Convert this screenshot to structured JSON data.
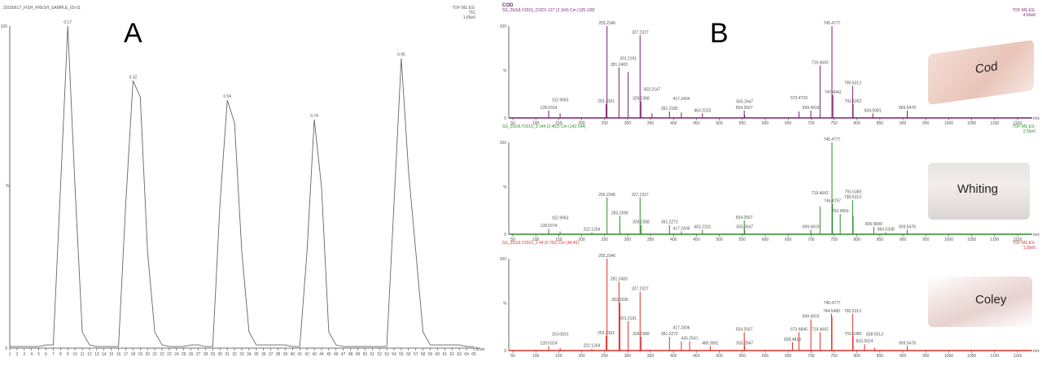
{
  "chart_data": [
    {
      "type": "line",
      "panel_label": "A",
      "title": "20150617_FISH_FRESH_SAMPLE_03-01",
      "header_right": [
        "TOF MS ES-",
        "TIC",
        "1.65e6"
      ],
      "xlabel": "Scan",
      "ylabel": "%",
      "xlim": [
        1,
        65
      ],
      "ylim": [
        0,
        100
      ],
      "y_ticks": [
        "0",
        "100"
      ],
      "x": [
        1,
        2,
        3,
        4,
        5,
        6,
        7,
        8,
        9,
        10,
        11,
        12,
        13,
        14,
        15,
        16,
        17,
        18,
        19,
        20,
        21,
        22,
        23,
        24,
        25,
        26,
        27,
        28,
        29,
        30,
        31,
        32,
        33,
        34,
        35,
        36,
        37,
        38,
        39,
        40,
        41,
        42,
        43,
        44,
        45,
        46,
        47,
        48,
        49,
        50,
        51,
        52,
        53,
        54,
        55,
        56,
        57,
        58,
        59,
        60,
        61,
        62,
        63,
        64,
        65
      ],
      "y": [
        0.5,
        0.5,
        0.5,
        0.5,
        0.5,
        1,
        1,
        50,
        100,
        50,
        5,
        1,
        0.5,
        0.5,
        0.5,
        0.5,
        45,
        83,
        78,
        30,
        5,
        1,
        0.5,
        0.5,
        0.5,
        1,
        1,
        0.5,
        0.5,
        45,
        77,
        70,
        30,
        5,
        1,
        1,
        1,
        1,
        1,
        0.5,
        0.5,
        30,
        71,
        50,
        5,
        1,
        0.5,
        0.5,
        0.5,
        0.5,
        0.5,
        0.5,
        0.5,
        45,
        90,
        55,
        30,
        5,
        1,
        1,
        1,
        1,
        1,
        0.5,
        0.5
      ],
      "peak_labels": [
        {
          "x": 9,
          "y": 100,
          "label": "0.17"
        },
        {
          "x": 18,
          "y": 83,
          "label": "0.32"
        },
        {
          "x": 31,
          "y": 77,
          "label": "0.54"
        },
        {
          "x": 43,
          "y": 71,
          "label": "0.74"
        },
        {
          "x": 55,
          "y": 90,
          "label": "0.95"
        }
      ]
    },
    {
      "type": "bar",
      "panel_label": "B",
      "group_title": "COD",
      "title": "SS_29JULY2015_COD1 127 (2.164) Cm (125:128)",
      "header_right": [
        "TOF MS ES-",
        "4.60e6"
      ],
      "fish_label": "Cod",
      "color": "#7a1f6e",
      "xlabel": "m/z",
      "ylabel": "%",
      "xlim": [
        50,
        1200
      ],
      "ylim": [
        0,
        100
      ],
      "x_ticks": [
        50,
        100,
        150,
        200,
        250,
        300,
        350,
        400,
        450,
        500,
        550,
        600,
        650,
        700,
        750,
        800,
        850,
        900,
        950,
        1000,
        1050,
        1100,
        1150
      ],
      "peaks": [
        [
          128.0324,
          8
        ],
        [
          152.9963,
          5
        ],
        [
          253.2161,
          15
        ],
        [
          255.2346,
          100
        ],
        [
          281.2483,
          55
        ],
        [
          301.2191,
          50
        ],
        [
          327.2327,
          90
        ],
        [
          329.2368,
          18
        ],
        [
          353.2147,
          5
        ],
        [
          391.2185,
          7
        ],
        [
          417.2404,
          6
        ],
        [
          463.2233,
          5
        ],
        [
          554.2567,
          8
        ],
        [
          555.2647,
          3
        ],
        [
          673.4733,
          7
        ],
        [
          699.4919,
          8
        ],
        [
          719.4642,
          57
        ],
        [
          745.4777,
          100
        ],
        [
          747.4942,
          25
        ],
        [
          790.5313,
          35
        ],
        [
          791.5262,
          15
        ],
        [
          834.5081,
          5
        ],
        [
          909.5478,
          8
        ]
      ]
    },
    {
      "type": "bar",
      "title": "SS_29JULY2015_3 144 (2.452) Cm (142:144)",
      "header_right": [
        "TOF MS ES-",
        "2.55e6"
      ],
      "fish_label": "Whiting",
      "color": "#2e8b2e",
      "xlabel": "m/z",
      "ylabel": "%",
      "xlim": [
        50,
        1200
      ],
      "ylim": [
        0,
        100
      ],
      "x_ticks": [
        50,
        100,
        150,
        200,
        250,
        300,
        350,
        400,
        450,
        500,
        550,
        600,
        650,
        700,
        750,
        800,
        850,
        900,
        950,
        1000,
        1050,
        1100,
        1150
      ],
      "peaks": [
        [
          128.0374,
          6
        ],
        [
          152.9963,
          3
        ],
        [
          222.1264,
          2
        ],
        [
          255.2346,
          40
        ],
        [
          283.2596,
          20
        ],
        [
          327.2327,
          40
        ],
        [
          329.2368,
          10
        ],
        [
          391.2272,
          10
        ],
        [
          417.2406,
          3
        ],
        [
          463.2231,
          5
        ],
        [
          554.2567,
          15
        ],
        [
          555.2647,
          5
        ],
        [
          699.4919,
          5
        ],
        [
          719.4642,
          30
        ],
        [
          745.4777,
          100
        ],
        [
          746.4797,
          33
        ],
        [
          763.4993,
          22
        ],
        [
          790.5313,
          37
        ],
        [
          791.5385,
          20
        ],
        [
          836.5849,
          8
        ],
        [
          863.0338,
          2
        ],
        [
          909.5478,
          5
        ]
      ]
    },
    {
      "type": "bar",
      "title": "SS_29JULY2015_2 44 (0.761) Cm (44:45)",
      "header_right": [
        "TOF MS ES-",
        "1.30e6"
      ],
      "fish_label": "Coley",
      "color": "#e0302a",
      "xlabel": "m/z",
      "ylabel": "%",
      "xlim": [
        50,
        1200
      ],
      "ylim": [
        0,
        100
      ],
      "x_ticks": [
        50,
        100,
        150,
        200,
        250,
        300,
        350,
        400,
        450,
        500,
        550,
        600,
        650,
        700,
        750,
        800,
        850,
        900,
        950,
        1000,
        1050,
        1100,
        1150
      ],
      "peaks": [
        [
          128.0324,
          5
        ],
        [
          153.0831,
          3
        ],
        [
          222.1264,
          2
        ],
        [
          253.2161,
          16
        ],
        [
          255.2346,
          100
        ],
        [
          281.2483,
          75
        ],
        [
          283.2596,
          52
        ],
        [
          301.2191,
          32
        ],
        [
          327.2327,
          64
        ],
        [
          329.2368,
          15
        ],
        [
          391.2272,
          15
        ],
        [
          417.2406,
          10
        ],
        [
          435.2541,
          10
        ],
        [
          480.3061,
          5
        ],
        [
          554.2567,
          20
        ],
        [
          555.2647,
          5
        ],
        [
          659.4819,
          9
        ],
        [
          673.4846,
          20
        ],
        [
          699.4919,
          34
        ],
        [
          719.4642,
          20
        ],
        [
          744.548,
          40
        ],
        [
          745.4777,
          37
        ],
        [
          790.5313,
          40
        ],
        [
          791.5385,
          15
        ],
        [
          816.5524,
          7
        ],
        [
          838.5513,
          3
        ],
        [
          909.5478,
          5
        ]
      ]
    }
  ]
}
